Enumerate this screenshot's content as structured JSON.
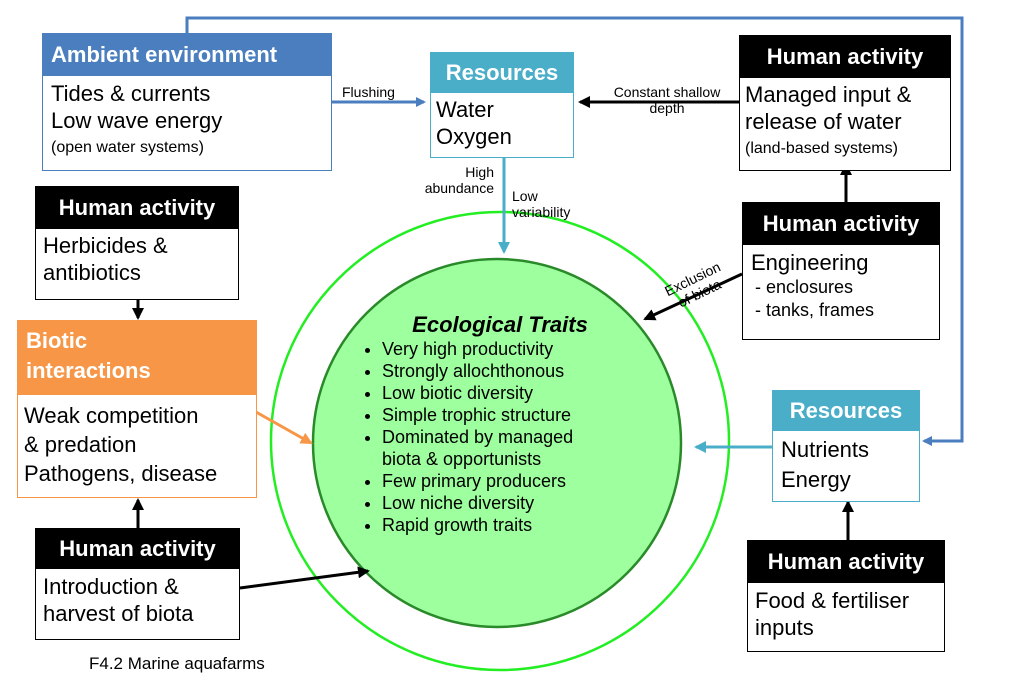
{
  "ambient": {
    "header": "Ambient environment",
    "line1": "Tides & currents",
    "line2": "Low wave energy",
    "note": "(open water systems)"
  },
  "resources_top": {
    "header": "Resources",
    "line1": "Water",
    "line2": "Oxygen"
  },
  "human_water": {
    "header": "Human activity",
    "line1": "Managed input &",
    "line2": "release of water",
    "note": "(land-based systems)"
  },
  "human_herbicides": {
    "header": "Human activity",
    "line1": "Herbicides &",
    "line2": "antibiotics"
  },
  "human_engineering": {
    "header": "Human activity",
    "line1": "Engineering",
    "line2": "- enclosures",
    "line3": "- tanks, frames"
  },
  "biotic": {
    "header1": "Biotic",
    "header2": "interactions",
    "line1": "Weak competition",
    "line2": "& predation",
    "line3": "Pathogens, disease"
  },
  "resources_nutrients": {
    "header": "Resources",
    "line1": "Nutrients",
    "line2": "Energy"
  },
  "human_introduction": {
    "header": "Human activity",
    "line1": "Introduction &",
    "line2": "harvest of biota"
  },
  "human_food": {
    "header": "Human activity",
    "line1": "Food & fertiliser",
    "line2": "inputs"
  },
  "ecological_traits": {
    "title": "Ecological Traits",
    "items": [
      "Very high productivity",
      "Strongly allochthonous",
      "Low biotic diversity",
      "Simple trophic structure",
      "Dominated by managed",
      "Few primary producers",
      "Low niche diversity",
      "Rapid growth traits"
    ],
    "item5_cont": "biota & opportunists"
  },
  "labels": {
    "flushing": "Flushing",
    "constant1": "Constant shallow",
    "constant2": "depth",
    "high1": "High",
    "high2": "abundance",
    "low1": "Low",
    "low2": "variability",
    "exclusion1": "Exclusion",
    "exclusion2": "of biota"
  },
  "caption": "F4.2 Marine aquafarms",
  "colors": {
    "ambient_blue": "#4a7ebf",
    "resources_teal": "#4aaec8",
    "human_black": "#000000",
    "biotic_orange": "#f79646",
    "circle_fill": "#9dff9d",
    "circle_stroke": "#2a8a2a",
    "ring_green": "#22ee22"
  }
}
